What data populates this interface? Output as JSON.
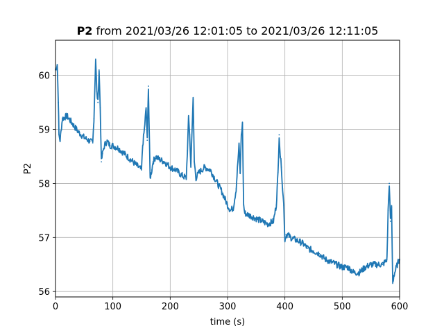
{
  "chart_data": {
    "type": "line",
    "title_bold": "P2",
    "title_rest": " from 2021/03/26 12:01:05 to 2021/03/26 12:11:05",
    "xlabel": "time (s)",
    "ylabel": "P2",
    "xlim": [
      0,
      600
    ],
    "ylim": [
      55.9,
      60.65
    ],
    "xticks": [
      0,
      100,
      200,
      300,
      400,
      500,
      600
    ],
    "yticks": [
      56,
      57,
      58,
      59,
      60
    ],
    "grid": true,
    "line_color": "#1f77b4",
    "series": [
      {
        "x": [
          0,
          3,
          5,
          6,
          8,
          12,
          20,
          30,
          40,
          50,
          60,
          65,
          67,
          70,
          72,
          74,
          76,
          78,
          80,
          82,
          84,
          86,
          90,
          95,
          100,
          110,
          120,
          130,
          140,
          150,
          152,
          155,
          158,
          160,
          162,
          163,
          165,
          168,
          170,
          175,
          180,
          190,
          200,
          210,
          220,
          228,
          230,
          232,
          234,
          236,
          238,
          240,
          242,
          245,
          250,
          260,
          270,
          280,
          290,
          300,
          305,
          310,
          315,
          318,
          320,
          322,
          324,
          326,
          328,
          330,
          340,
          350,
          360,
          370,
          380,
          385,
          388,
          390,
          392,
          394,
          396,
          398,
          400,
          402,
          405,
          410,
          420,
          430,
          440,
          450,
          460,
          470,
          480,
          490,
          500,
          510,
          520,
          530,
          540,
          550,
          560,
          570,
          575,
          578,
          580,
          582,
          584,
          586,
          588,
          590,
          593,
          596,
          600
        ],
        "y": [
          60.1,
          60.2,
          59.5,
          58.9,
          58.8,
          59.2,
          59.25,
          59.1,
          58.95,
          58.85,
          58.78,
          58.75,
          59.2,
          60.3,
          59.7,
          59.5,
          60.1,
          59.4,
          58.4,
          58.55,
          58.65,
          58.72,
          58.78,
          58.7,
          58.7,
          58.65,
          58.55,
          58.45,
          58.35,
          58.25,
          58.7,
          59.0,
          59.4,
          58.8,
          59.8,
          59.2,
          58.1,
          58.25,
          58.4,
          58.5,
          58.45,
          58.4,
          58.3,
          58.25,
          58.15,
          58.1,
          58.6,
          59.2,
          58.9,
          58.3,
          59.0,
          59.55,
          58.4,
          58.1,
          58.2,
          58.3,
          58.25,
          58.05,
          57.85,
          57.6,
          57.5,
          57.55,
          57.9,
          58.4,
          58.7,
          58.2,
          58.9,
          59.1,
          57.6,
          57.45,
          57.4,
          57.35,
          57.3,
          57.25,
          57.3,
          57.6,
          58.2,
          58.9,
          58.5,
          58.3,
          57.9,
          57.6,
          56.95,
          57.05,
          57.05,
          57.0,
          56.95,
          56.9,
          56.8,
          56.75,
          56.7,
          56.6,
          56.55,
          56.5,
          56.45,
          56.45,
          56.35,
          56.35,
          56.45,
          56.5,
          56.5,
          56.5,
          56.55,
          56.6,
          57.5,
          58.0,
          57.3,
          57.55,
          56.15,
          56.3,
          56.4,
          56.5,
          56.6
        ]
      }
    ]
  }
}
